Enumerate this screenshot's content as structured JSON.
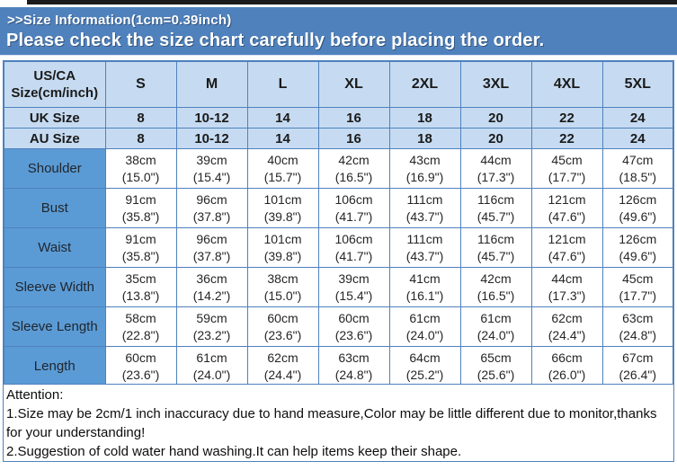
{
  "page": {
    "colors": {
      "band_blue": "#4f81bd",
      "light_blue": "#c6dbf1",
      "label_blue": "#5b9bd5",
      "border_blue": "#4f81bd",
      "top_strip": "#1b1b1b"
    }
  },
  "header": {
    "line1": ">>Size Information(1cm=0.39inch)",
    "line2": "Please check the size chart carefully before placing the order."
  },
  "table": {
    "corner_label": "US/CA Size(cm/inch)",
    "size_columns": [
      "S",
      "M",
      "L",
      "XL",
      "2XL",
      "3XL",
      "4XL",
      "5XL"
    ],
    "uk_row": {
      "label": "UK Size",
      "values": [
        "8",
        "10-12",
        "14",
        "16",
        "18",
        "20",
        "22",
        "24"
      ]
    },
    "au_row": {
      "label": "AU Size",
      "values": [
        "8",
        "10-12",
        "14",
        "16",
        "18",
        "20",
        "22",
        "24"
      ]
    },
    "measurement_rows": [
      {
        "label": "Shoulder",
        "values": [
          {
            "cm": "38cm",
            "inch": "(15.0\")"
          },
          {
            "cm": "39cm",
            "inch": "(15.4\")"
          },
          {
            "cm": "40cm",
            "inch": "(15.7\")"
          },
          {
            "cm": "42cm",
            "inch": "(16.5\")"
          },
          {
            "cm": "43cm",
            "inch": "(16.9\")"
          },
          {
            "cm": "44cm",
            "inch": "(17.3\")"
          },
          {
            "cm": "45cm",
            "inch": "(17.7\")"
          },
          {
            "cm": "47cm",
            "inch": "(18.5\")"
          }
        ]
      },
      {
        "label": "Bust",
        "values": [
          {
            "cm": "91cm",
            "inch": "(35.8\")"
          },
          {
            "cm": "96cm",
            "inch": "(37.8\")"
          },
          {
            "cm": "101cm",
            "inch": "(39.8\")"
          },
          {
            "cm": "106cm",
            "inch": "(41.7\")"
          },
          {
            "cm": "111cm",
            "inch": "(43.7\")"
          },
          {
            "cm": "116cm",
            "inch": "(45.7\")"
          },
          {
            "cm": "121cm",
            "inch": "(47.6\")"
          },
          {
            "cm": "126cm",
            "inch": "(49.6\")"
          }
        ]
      },
      {
        "label": "Waist",
        "values": [
          {
            "cm": "91cm",
            "inch": "(35.8\")"
          },
          {
            "cm": "96cm",
            "inch": "(37.8\")"
          },
          {
            "cm": "101cm",
            "inch": "(39.8\")"
          },
          {
            "cm": "106cm",
            "inch": "(41.7\")"
          },
          {
            "cm": "111cm",
            "inch": "(43.7\")"
          },
          {
            "cm": "116cm",
            "inch": "(45.7\")"
          },
          {
            "cm": "121cm",
            "inch": "(47.6\")"
          },
          {
            "cm": "126cm",
            "inch": "(49.6\")"
          }
        ]
      },
      {
        "label": "Sleeve Width",
        "values": [
          {
            "cm": "35cm",
            "inch": "(13.8\")"
          },
          {
            "cm": "36cm",
            "inch": "(14.2\")"
          },
          {
            "cm": "38cm",
            "inch": "(15.0\")"
          },
          {
            "cm": "39cm",
            "inch": "(15.4\")"
          },
          {
            "cm": "41cm",
            "inch": "(16.1\")"
          },
          {
            "cm": "42cm",
            "inch": "(16.5\")"
          },
          {
            "cm": "44cm",
            "inch": "(17.3\")"
          },
          {
            "cm": "45cm",
            "inch": "(17.7\")"
          }
        ]
      },
      {
        "label": "Sleeve Length",
        "values": [
          {
            "cm": "58cm",
            "inch": "(22.8\")"
          },
          {
            "cm": "59cm",
            "inch": "(23.2\")"
          },
          {
            "cm": "60cm",
            "inch": "(23.6\")"
          },
          {
            "cm": "60cm",
            "inch": "(23.6\")"
          },
          {
            "cm": "61cm",
            "inch": "(24.0\")"
          },
          {
            "cm": "61cm",
            "inch": "(24.0\")"
          },
          {
            "cm": "62cm",
            "inch": "(24.4\")"
          },
          {
            "cm": "63cm",
            "inch": "(24.8\")"
          }
        ]
      },
      {
        "label": "Length",
        "values": [
          {
            "cm": "60cm",
            "inch": "(23.6\")"
          },
          {
            "cm": "61cm",
            "inch": "(24.0\")"
          },
          {
            "cm": "62cm",
            "inch": "(24.4\")"
          },
          {
            "cm": "63cm",
            "inch": "(24.8\")"
          },
          {
            "cm": "64cm",
            "inch": "(25.2\")"
          },
          {
            "cm": "65cm",
            "inch": "(25.6\")"
          },
          {
            "cm": "66cm",
            "inch": "(26.0\")"
          },
          {
            "cm": "67cm",
            "inch": "(26.4\")"
          }
        ]
      }
    ]
  },
  "attention": {
    "title": "Attention:",
    "lines": [
      "1.Size may be 2cm/1 inch inaccuracy due to hand measure,Color may be little different due to monitor,thanks for your understanding!",
      "2.Suggestion of cold water hand washing.It can help items keep their shape."
    ]
  }
}
